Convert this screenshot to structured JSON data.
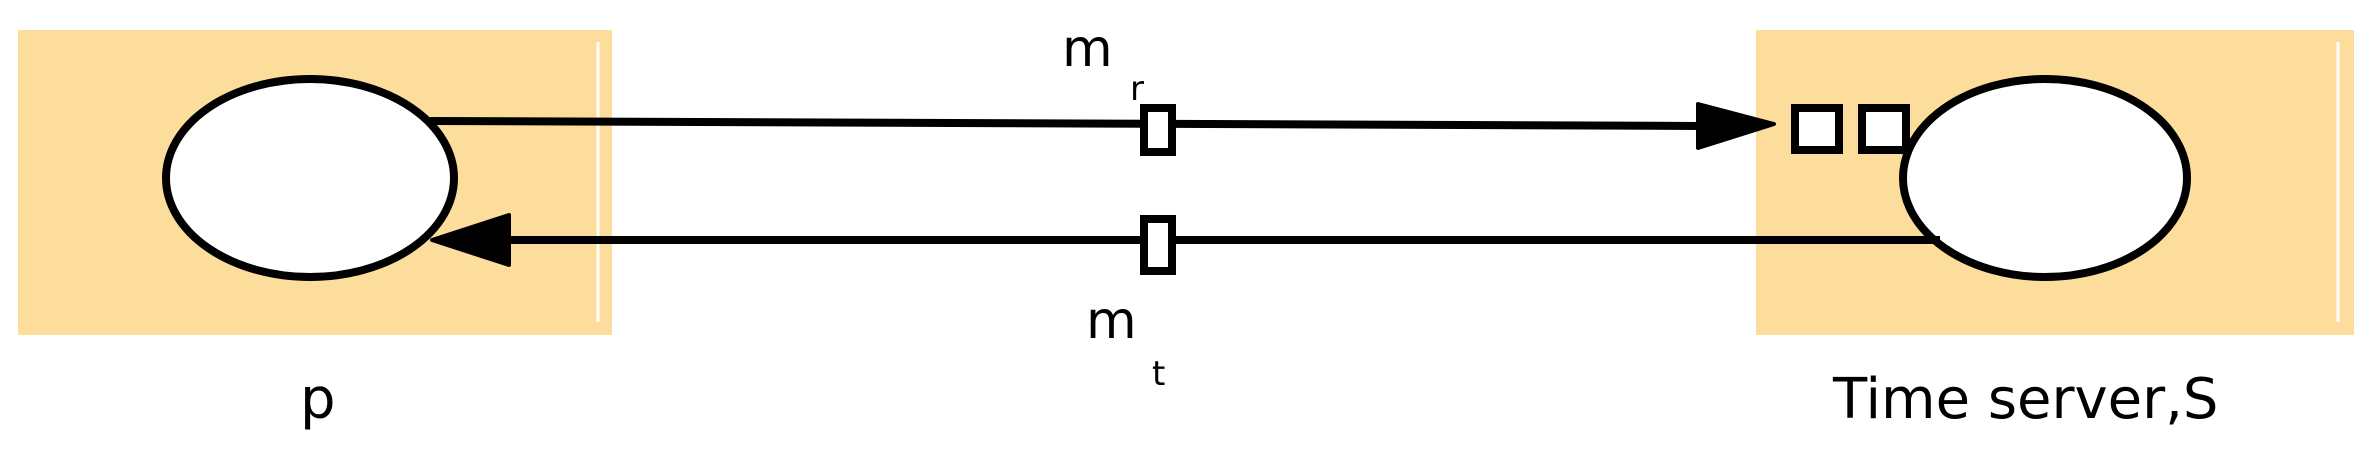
{
  "diagram": {
    "colors": {
      "box_fill": "#FDDD9C",
      "stroke": "#000000",
      "node_fill": "#FFFFFF"
    },
    "left_label": "p",
    "right_label": "Time server,S",
    "top_message": {
      "base": "m",
      "sub": "r"
    },
    "bottom_message": {
      "base": "m",
      "sub": "t"
    }
  }
}
